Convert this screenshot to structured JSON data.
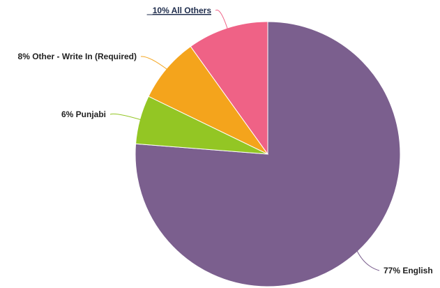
{
  "chart_data": {
    "type": "pie",
    "title": "",
    "slices": [
      {
        "label": "77% English",
        "value": 77,
        "color": "#7b5f8e",
        "link": false
      },
      {
        "label": "6% Punjabi",
        "value": 6,
        "color": "#93c624",
        "link": false
      },
      {
        "label": "8% Other - Write In (Required)",
        "value": 8,
        "color": "#f4a41c",
        "link": false
      },
      {
        "label": "10% All Others",
        "value": 10,
        "color": "#ef6286",
        "link": true
      }
    ]
  }
}
